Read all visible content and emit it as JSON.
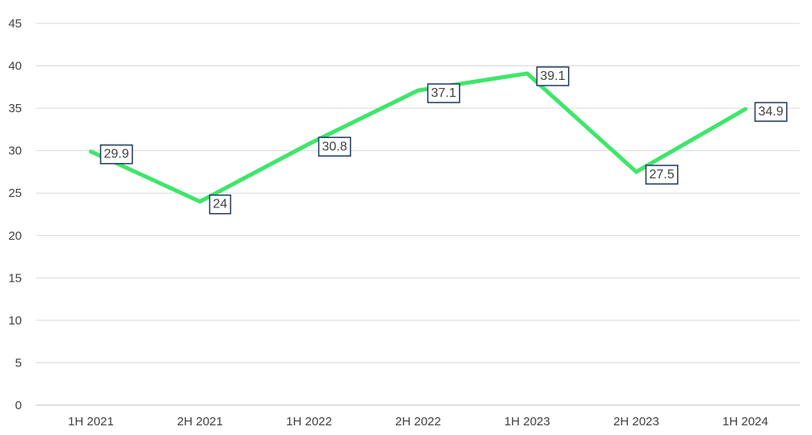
{
  "chart_data": {
    "type": "line",
    "categories": [
      "1H 2021",
      "2H 2021",
      "1H 2022",
      "2H 2022",
      "1H 2023",
      "2H 2023",
      "1H 2024"
    ],
    "series": [
      {
        "values": [
          29.9,
          24,
          30.8,
          37.1,
          39.1,
          27.5,
          34.9
        ],
        "color": "#3ee66a"
      }
    ],
    "data_labels": [
      "29.9",
      "24",
      "30.8",
      "37.1",
      "39.1",
      "27.5",
      "34.9"
    ],
    "y_ticks": [
      "0",
      "5",
      "10",
      "15",
      "20",
      "25",
      "30",
      "35",
      "40",
      "45"
    ],
    "ylim": [
      0,
      45
    ],
    "grid": true,
    "legend": "none",
    "title": "",
    "xlabel": "",
    "ylabel": ""
  }
}
